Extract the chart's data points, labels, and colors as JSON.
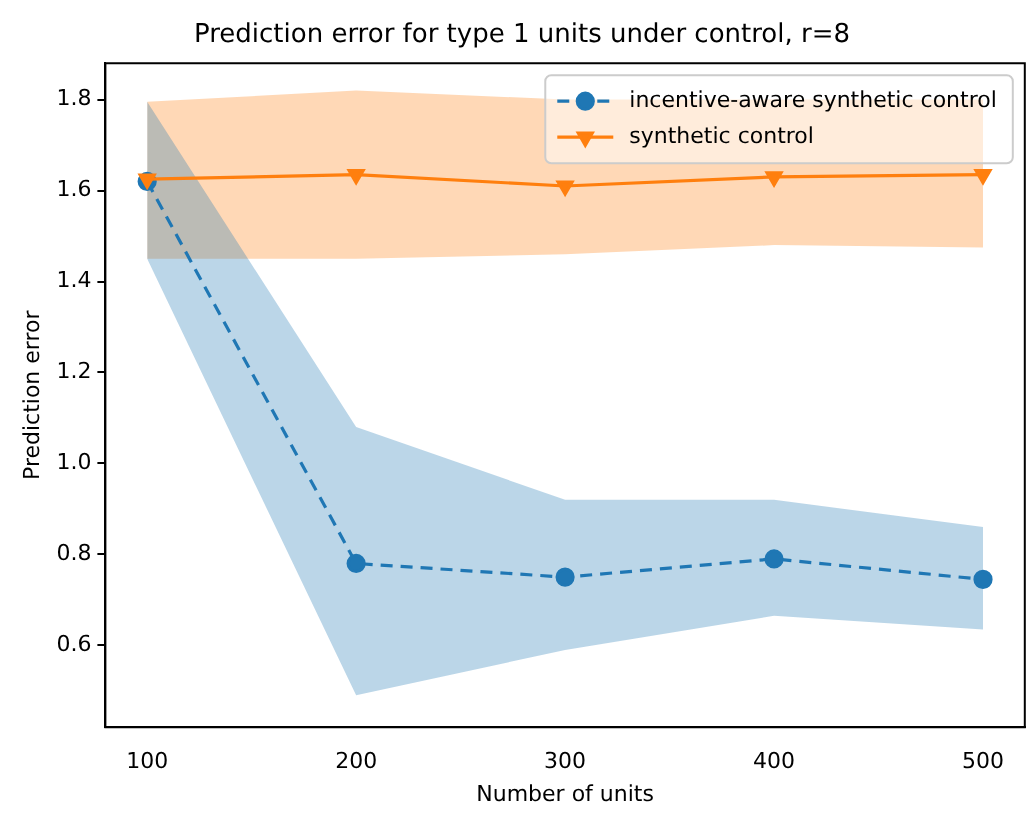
{
  "chart_data": {
    "type": "line",
    "title": "Prediction error for type 1 units under control, r=8",
    "xlabel": "Number of units",
    "ylabel": "Prediction error",
    "x": [
      100,
      200,
      300,
      400,
      500
    ],
    "series": [
      {
        "name": "incentive-aware synthetic control",
        "color": "#1f77b4",
        "values": [
          1.62,
          0.78,
          0.75,
          0.79,
          0.745
        ],
        "lower": [
          1.45,
          0.49,
          0.59,
          0.665,
          0.635
        ],
        "upper": [
          1.795,
          1.08,
          0.92,
          0.92,
          0.86
        ],
        "marker": "circle",
        "line_style": "dashed"
      },
      {
        "name": "synthetic control",
        "color": "#ff7f0e",
        "values": [
          1.625,
          1.635,
          1.61,
          1.63,
          1.635
        ],
        "lower": [
          1.45,
          1.45,
          1.46,
          1.48,
          1.475
        ],
        "upper": [
          1.795,
          1.82,
          1.8,
          1.8,
          1.8
        ],
        "marker": "triangle",
        "line_style": "solid"
      }
    ],
    "xlim": [
      80,
      520
    ],
    "xticks": [
      100,
      200,
      300,
      400,
      500
    ],
    "ylim": [
      0.42,
      1.88
    ],
    "yticks": [
      0.6,
      0.8,
      {
        "value": 1,
        "label": "1.0"
      },
      1.2,
      1.4,
      1.6,
      1.8
    ],
    "grid": false,
    "legend": "top right"
  }
}
